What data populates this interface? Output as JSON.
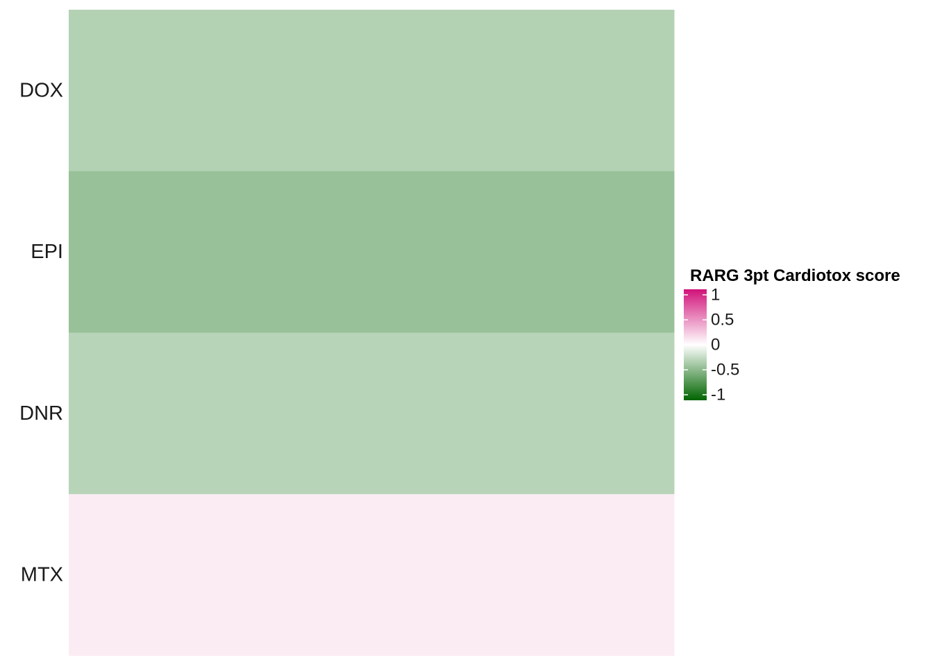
{
  "chart_data": {
    "type": "heatmap",
    "rows": [
      "DOX",
      "EPI",
      "DNR",
      "MTX"
    ],
    "columns": [
      ""
    ],
    "values": [
      [
        -0.3
      ],
      [
        -0.4
      ],
      [
        -0.28
      ],
      [
        0.08
      ]
    ],
    "title": "",
    "xlabel": "",
    "ylabel": "",
    "legend": {
      "title": "RARG 3pt Cardiotox score",
      "ticks": [
        1,
        0.5,
        0,
        -0.5,
        -1
      ],
      "tick_labels": [
        "1",
        "0.5",
        "0",
        "-0.5",
        "-1"
      ],
      "placement": "right",
      "range": [
        -1,
        1
      ]
    },
    "color_scale": {
      "low": "#006400",
      "mid": "#ffffff",
      "high": "#d1127a"
    },
    "grid": false
  }
}
